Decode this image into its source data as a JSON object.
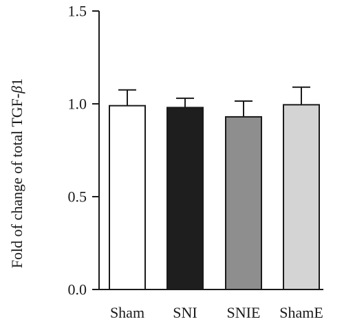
{
  "chart_data": {
    "type": "bar",
    "categories": [
      "Sham",
      "SNI",
      "SNIE",
      "ShamE"
    ],
    "values": [
      0.99,
      0.98,
      0.93,
      0.995
    ],
    "error": [
      0.085,
      0.05,
      0.085,
      0.095
    ],
    "colors": [
      "#ffffff",
      "#1e1e1e",
      "#8e8e8e",
      "#d4d4d4"
    ],
    "ylabel_parts": [
      "Fold of change of total TGF-",
      "β",
      "1"
    ],
    "ylim": [
      0,
      1.5
    ],
    "yticks": [
      0.0,
      0.5,
      1.0,
      1.5
    ],
    "ytick_labels": [
      "0.0",
      "0.5",
      "1.0",
      "1.5"
    ],
    "grid": false
  }
}
